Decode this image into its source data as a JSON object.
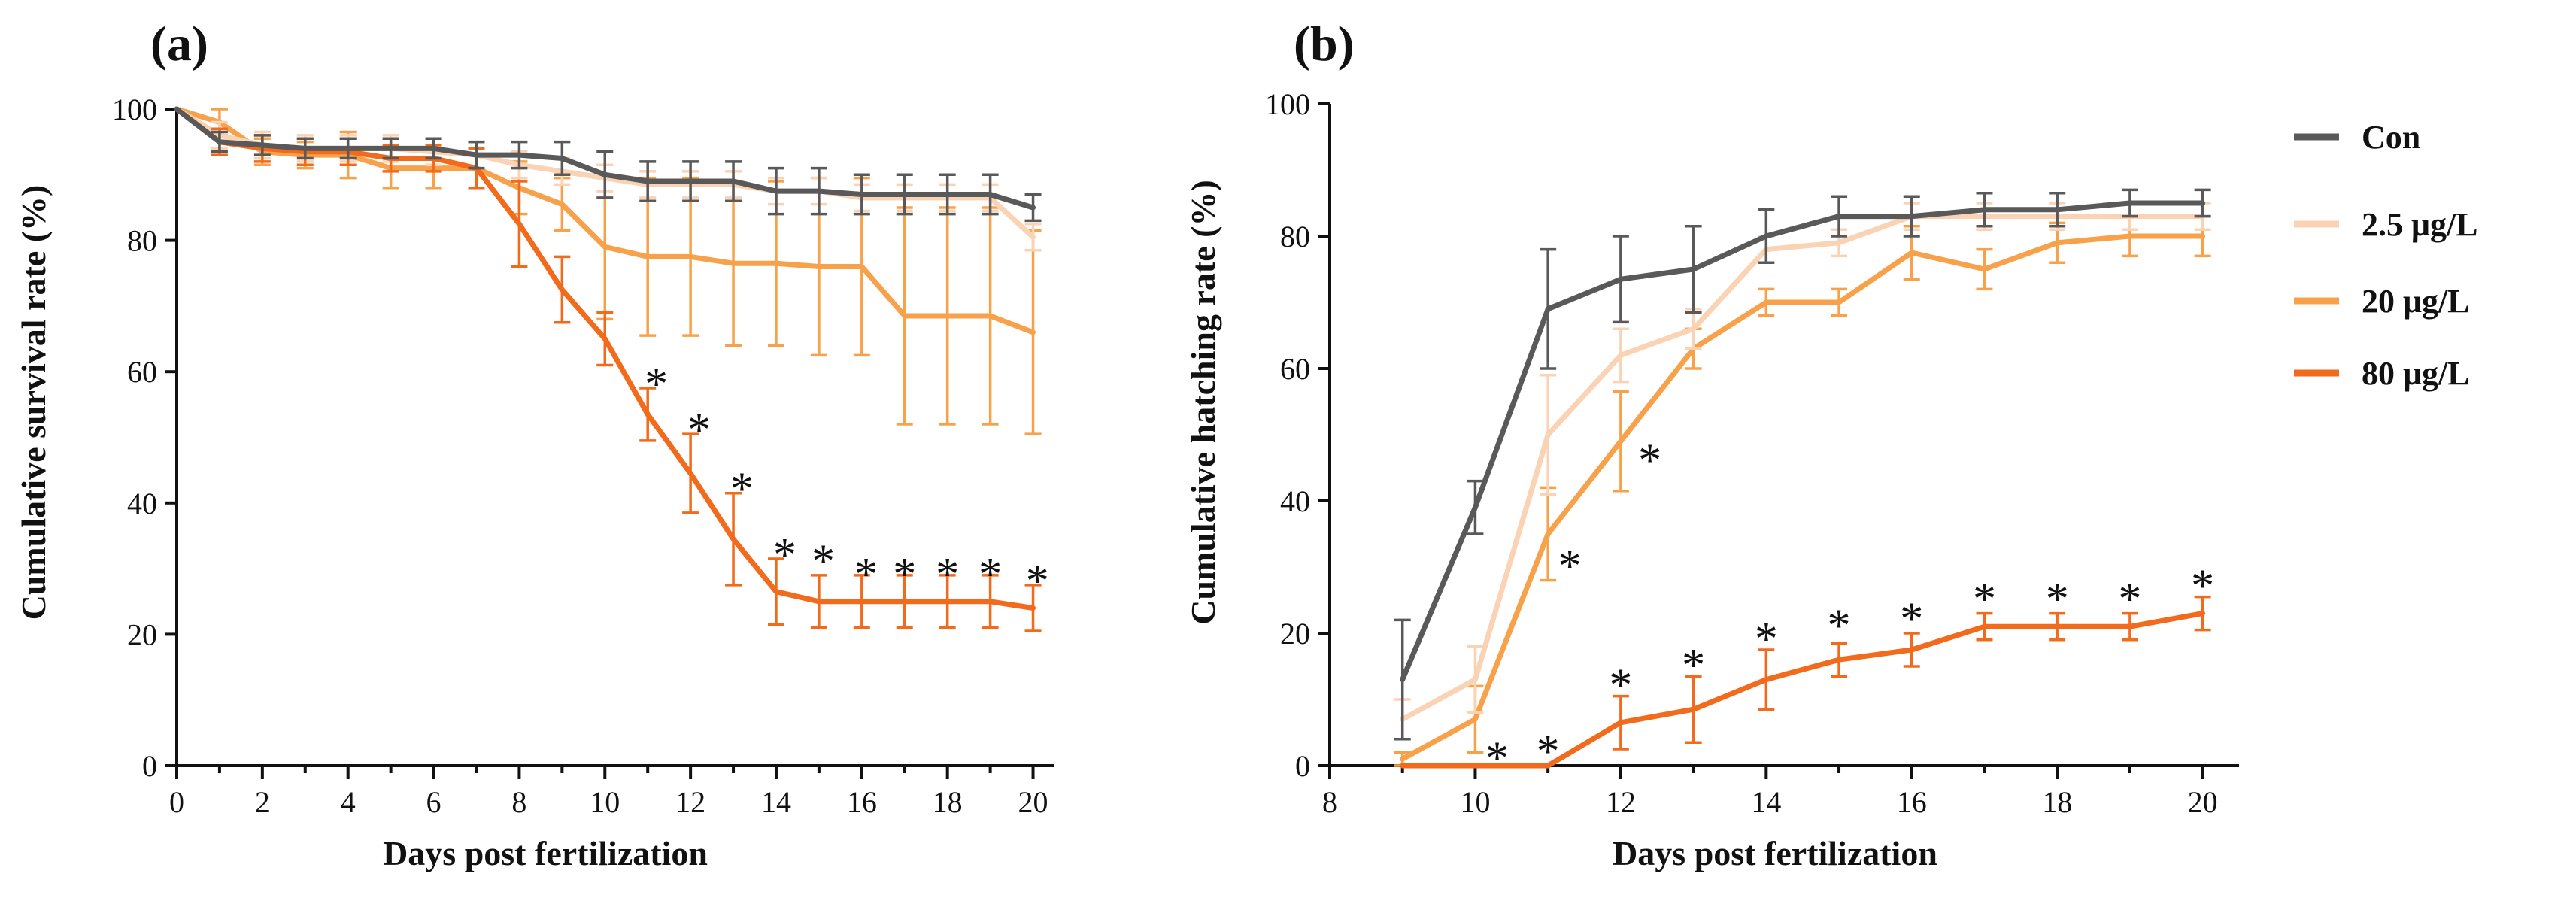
{
  "legend": {
    "items": [
      {
        "key": "con",
        "label": "Con"
      },
      {
        "key": "c25",
        "label": "2.5 μg/L"
      },
      {
        "key": "c20",
        "label": "20 μg/L"
      },
      {
        "key": "c80",
        "label": "80 μg/L"
      }
    ]
  },
  "colors": {
    "con": "#595959",
    "c25": "#FAD3B5",
    "c20": "#F7A24B",
    "c80": "#F26A1B"
  },
  "chart_data": [
    {
      "type": "line",
      "panel": "(a)",
      "xlabel": "Days post fertilization",
      "ylabel": "Cumulative survival rate (%)",
      "xlim": [
        0,
        20.5
      ],
      "ylim": [
        0,
        100
      ],
      "xticks": [
        0,
        2,
        4,
        6,
        8,
        10,
        12,
        14,
        16,
        18,
        20
      ],
      "yticks": [
        0,
        20,
        40,
        60,
        80,
        100
      ],
      "x": [
        0,
        1,
        2,
        3,
        4,
        5,
        6,
        7,
        8,
        9,
        10,
        11,
        12,
        13,
        14,
        15,
        16,
        17,
        18,
        19,
        20
      ],
      "series": [
        {
          "key": "con",
          "name": "Con",
          "values": [
            100,
            95,
            94.5,
            94,
            94,
            94,
            94,
            93,
            93,
            92.5,
            90,
            89,
            89,
            89,
            87.5,
            87.5,
            87,
            87,
            87,
            87,
            85
          ],
          "errors": [
            0,
            1.5,
            1.5,
            1.5,
            1.5,
            1.5,
            1.5,
            2,
            2,
            2.5,
            3.5,
            3,
            3,
            3,
            3.5,
            3.5,
            3,
            3,
            3,
            3,
            2
          ]
        },
        {
          "key": "c25",
          "name": "2.5 μg/L",
          "values": [
            100,
            96,
            94.5,
            94,
            94,
            94,
            93.5,
            93,
            91.5,
            90.5,
            89.5,
            88.5,
            88.5,
            88.5,
            87.5,
            87.5,
            86.5,
            86.5,
            86.5,
            86.5,
            80.5
          ],
          "errors": [
            0,
            2,
            2,
            2,
            2,
            2,
            2,
            2,
            2,
            2,
            2,
            2,
            2,
            2,
            2,
            2,
            2,
            2,
            2,
            2,
            2
          ]
        },
        {
          "key": "c20",
          "name": "20 μg/L",
          "values": [
            100,
            98,
            93.5,
            93,
            93,
            91,
            91,
            91,
            88,
            85.5,
            79,
            77.5,
            77.5,
            76.5,
            76.5,
            76,
            76,
            68.5,
            68.5,
            68.5,
            66
          ],
          "errors": [
            0,
            2,
            2,
            2,
            3.5,
            3,
            3,
            3,
            4,
            4,
            11,
            12,
            12,
            12.5,
            12.5,
            13.5,
            13.5,
            16.5,
            16.5,
            16.5,
            15.5
          ]
        },
        {
          "key": "c80",
          "name": "80 μg/L",
          "values": [
            100,
            95,
            94,
            93.5,
            93.5,
            92.5,
            92.5,
            91,
            82.5,
            72.5,
            65,
            53.5,
            44.5,
            34.5,
            26.5,
            25,
            25,
            25,
            25,
            25,
            24
          ],
          "errors": [
            0,
            2,
            2,
            2,
            2,
            2,
            2,
            3,
            6.5,
            5,
            4,
            4,
            6,
            7,
            5,
            4,
            4,
            4,
            4,
            4,
            3.5
          ]
        }
      ],
      "annotations": [
        {
          "text": "*",
          "x": 11.2,
          "y": 59
        },
        {
          "text": "*",
          "x": 12.2,
          "y": 52
        },
        {
          "text": "*",
          "x": 13.2,
          "y": 43
        },
        {
          "text": "*",
          "x": 14.2,
          "y": 33
        },
        {
          "text": "*",
          "x": 15.1,
          "y": 32
        },
        {
          "text": "*",
          "x": 16.1,
          "y": 30
        },
        {
          "text": "*",
          "x": 17.0,
          "y": 30
        },
        {
          "text": "*",
          "x": 18.0,
          "y": 30
        },
        {
          "text": "*",
          "x": 19.0,
          "y": 30
        },
        {
          "text": "*",
          "x": 20.1,
          "y": 29
        }
      ]
    },
    {
      "type": "line",
      "panel": "(b)",
      "xlabel": "Days post fertilization",
      "ylabel": "Cumulative hatching rate (%)",
      "xlim": [
        8,
        20.5
      ],
      "ylim": [
        0,
        100
      ],
      "xticks": [
        8,
        10,
        12,
        14,
        16,
        18,
        20
      ],
      "yticks": [
        0,
        20,
        40,
        60,
        80,
        100
      ],
      "x": [
        9,
        10,
        11,
        12,
        13,
        14,
        15,
        16,
        17,
        18,
        19,
        20
      ],
      "series": [
        {
          "key": "con",
          "name": "Con",
          "values": [
            13,
            39,
            69,
            73.5,
            75,
            80,
            83,
            83,
            84,
            84,
            85,
            85
          ],
          "errors": [
            9,
            4,
            9,
            6.5,
            6.5,
            4,
            3,
            3,
            2.5,
            2.5,
            2,
            2
          ]
        },
        {
          "key": "c25",
          "name": "2.5 μg/L",
          "values": [
            7,
            13,
            50,
            62,
            66,
            78,
            79,
            83,
            83,
            83,
            83,
            83
          ],
          "errors": [
            3,
            5,
            9,
            4,
            3,
            2,
            2,
            2,
            2,
            2,
            2,
            2
          ]
        },
        {
          "key": "c20",
          "name": "20 μg/L",
          "values": [
            1,
            7,
            35,
            49,
            63,
            70,
            70,
            77.5,
            75,
            79,
            80,
            80
          ],
          "errors": [
            1,
            5,
            7,
            7.5,
            3,
            2,
            2,
            4,
            3,
            3,
            3,
            3
          ]
        },
        {
          "key": "c80",
          "name": "80 μg/L",
          "values": [
            0,
            0,
            0,
            6.5,
            8.5,
            13,
            16,
            17.5,
            21,
            21,
            21,
            23
          ],
          "errors": [
            0,
            0,
            0,
            4,
            5,
            4.5,
            2.5,
            2.5,
            2,
            2,
            2,
            2.5
          ]
        }
      ],
      "annotations": [
        {
          "text": "*",
          "x": 11.3,
          "y": 31
        },
        {
          "text": "*",
          "x": 12.4,
          "y": 47
        },
        {
          "text": "*",
          "x": 10.3,
          "y": 2
        },
        {
          "text": "*",
          "x": 11.0,
          "y": 3
        },
        {
          "text": "*",
          "x": 12.0,
          "y": 13
        },
        {
          "text": "*",
          "x": 13.0,
          "y": 16
        },
        {
          "text": "*",
          "x": 14.0,
          "y": 20
        },
        {
          "text": "*",
          "x": 15.0,
          "y": 22
        },
        {
          "text": "*",
          "x": 16.0,
          "y": 23
        },
        {
          "text": "*",
          "x": 17.0,
          "y": 26
        },
        {
          "text": "*",
          "x": 18.0,
          "y": 26
        },
        {
          "text": "*",
          "x": 19.0,
          "y": 26
        },
        {
          "text": "*",
          "x": 20.0,
          "y": 28
        }
      ]
    }
  ]
}
